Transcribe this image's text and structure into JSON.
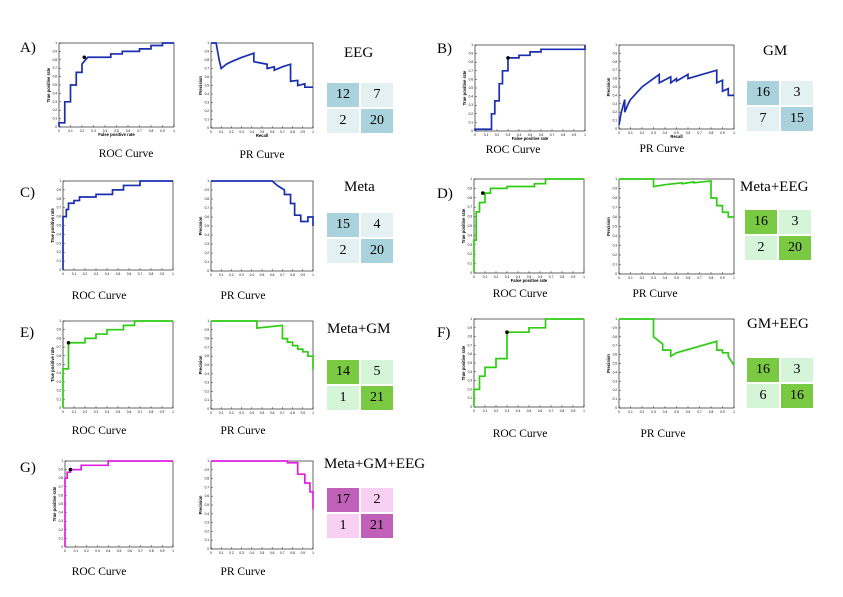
{
  "chart_data": [
    {
      "type": "line",
      "id": "A",
      "panel_label": "A)",
      "title": "EEG",
      "color": "#1a2fb0",
      "roc": {
        "caption": "ROC Curve",
        "xlabel": "False positive rate",
        "ylabel": "True positive rate",
        "x": [
          0,
          0,
          0.05,
          0.05,
          0.1,
          0.1,
          0.15,
          0.15,
          0.2,
          0.2,
          0.25,
          0.45,
          0.45,
          0.55,
          0.55,
          0.7,
          0.7,
          0.8,
          0.8,
          0.9,
          0.9,
          1
        ],
        "y": [
          0,
          0.05,
          0.05,
          0.3,
          0.3,
          0.5,
          0.5,
          0.65,
          0.65,
          0.75,
          0.83,
          0.83,
          0.87,
          0.87,
          0.9,
          0.9,
          0.93,
          0.93,
          0.97,
          0.97,
          1,
          1
        ],
        "marker": [
          0.22,
          0.83
        ]
      },
      "pr": {
        "caption": "PR Curve",
        "xlabel": "Recall",
        "ylabel": "Precision",
        "x": [
          0,
          0.05,
          0.08,
          0.1,
          0.15,
          0.2,
          0.3,
          0.42,
          0.42,
          0.55,
          0.55,
          0.62,
          0.62,
          0.7,
          0.78,
          0.78,
          0.85,
          0.85,
          0.92,
          0.92,
          1
        ],
        "y": [
          1,
          1,
          0.8,
          0.7,
          0.75,
          0.78,
          0.83,
          0.88,
          0.78,
          0.75,
          0.7,
          0.72,
          0.68,
          0.72,
          0.75,
          0.55,
          0.56,
          0.5,
          0.52,
          0.48,
          0.48
        ]
      },
      "matrix": [
        [
          12,
          7
        ],
        [
          2,
          20
        ]
      ],
      "shade": [
        [
          1,
          0
        ],
        [
          0,
          1
        ]
      ],
      "dark": "#a9d2dc",
      "light": "#e4f1f3"
    },
    {
      "type": "line",
      "id": "B",
      "panel_label": "B)",
      "title": "GM",
      "color": "#1a2fb0",
      "roc": {
        "caption": "ROC Curve",
        "xlabel": "False positive rate",
        "ylabel": "True positive rate",
        "x": [
          0,
          0,
          0.05,
          0.1,
          0.15,
          0.15,
          0.18,
          0.18,
          0.22,
          0.22,
          0.25,
          0.25,
          0.3,
          0.3,
          0.4,
          0.4,
          0.5,
          0.5,
          0.6,
          0.6,
          1,
          1
        ],
        "y": [
          0,
          0.02,
          0.02,
          0.02,
          0.02,
          0.2,
          0.2,
          0.35,
          0.35,
          0.55,
          0.55,
          0.7,
          0.7,
          0.85,
          0.85,
          0.88,
          0.88,
          0.92,
          0.92,
          0.95,
          0.95,
          1
        ],
        "marker": [
          0.3,
          0.85
        ]
      },
      "pr": {
        "caption": "PR Curve",
        "xlabel": "Recall",
        "ylabel": "Precision",
        "x": [
          0,
          0.02,
          0.05,
          0.05,
          0.08,
          0.1,
          0.2,
          0.3,
          0.35,
          0.35,
          0.45,
          0.45,
          0.5,
          0.5,
          0.6,
          0.6,
          0.7,
          0.85,
          0.85,
          0.9,
          0.9,
          0.95,
          0.95,
          1
        ],
        "y": [
          0.05,
          0.2,
          0.35,
          0.2,
          0.3,
          0.35,
          0.5,
          0.6,
          0.65,
          0.55,
          0.62,
          0.55,
          0.6,
          0.57,
          0.65,
          0.6,
          0.64,
          0.7,
          0.55,
          0.58,
          0.45,
          0.48,
          0.4,
          0.4
        ]
      },
      "matrix": [
        [
          16,
          3
        ],
        [
          7,
          15
        ]
      ],
      "shade": [
        [
          1,
          0
        ],
        [
          0,
          1
        ]
      ],
      "dark": "#a9d2dc",
      "light": "#e4f1f3"
    },
    {
      "type": "line",
      "id": "C",
      "panel_label": "C)",
      "title": "Meta",
      "color": "#1a2fb0",
      "roc": {
        "caption": "ROC Curve",
        "xlabel": "",
        "ylabel": "True positive rate",
        "x": [
          0,
          0,
          0.03,
          0.03,
          0.05,
          0.05,
          0.1,
          0.1,
          0.15,
          0.15,
          0.3,
          0.3,
          0.45,
          0.45,
          0.55,
          0.55,
          0.7,
          0.7,
          1
        ],
        "y": [
          0,
          0.6,
          0.6,
          0.68,
          0.68,
          0.75,
          0.75,
          0.78,
          0.78,
          0.82,
          0.82,
          0.85,
          0.85,
          0.9,
          0.9,
          0.95,
          0.95,
          1,
          1
        ],
        "marker": null
      },
      "pr": {
        "caption": "PR Curve",
        "xlabel": "",
        "ylabel": "Precision",
        "x": [
          0,
          0.6,
          0.65,
          0.72,
          0.72,
          0.78,
          0.78,
          0.82,
          0.82,
          0.88,
          0.88,
          0.95,
          0.95,
          1,
          1
        ],
        "y": [
          1,
          1,
          0.95,
          0.9,
          0.85,
          0.85,
          0.75,
          0.75,
          0.62,
          0.62,
          0.55,
          0.55,
          0.6,
          0.6,
          0.5
        ]
      },
      "matrix": [
        [
          15,
          4
        ],
        [
          2,
          20
        ]
      ],
      "shade": [
        [
          1,
          0
        ],
        [
          0,
          1
        ]
      ],
      "dark": "#a9d2dc",
      "light": "#e4f1f3"
    },
    {
      "type": "line",
      "id": "D",
      "panel_label": "D)",
      "title": "Meta+EEG",
      "color": "#2ecc12",
      "roc": {
        "caption": "ROC Curve",
        "xlabel": "False positive rate",
        "ylabel": "True positive rate",
        "x": [
          0,
          0,
          0.02,
          0.02,
          0.05,
          0.05,
          0.1,
          0.1,
          0.15,
          0.15,
          0.3,
          0.3,
          0.55,
          0.55,
          0.65,
          0.65,
          1
        ],
        "y": [
          0,
          0.35,
          0.35,
          0.65,
          0.65,
          0.75,
          0.75,
          0.85,
          0.85,
          0.9,
          0.9,
          0.92,
          0.92,
          0.95,
          0.95,
          1,
          1
        ],
        "marker": [
          0.08,
          0.85
        ]
      },
      "pr": {
        "caption": "PR Curve",
        "xlabel": "",
        "ylabel": "Precision",
        "x": [
          0,
          0.3,
          0.3,
          0.4,
          0.55,
          0.55,
          0.65,
          0.65,
          0.8,
          0.8,
          0.85,
          0.85,
          0.9,
          0.9,
          0.95,
          0.95,
          1
        ],
        "y": [
          1,
          1,
          0.92,
          0.94,
          0.96,
          0.95,
          0.97,
          0.96,
          0.98,
          0.8,
          0.8,
          0.72,
          0.72,
          0.65,
          0.65,
          0.6,
          0.6
        ]
      },
      "matrix": [
        [
          16,
          3
        ],
        [
          2,
          20
        ]
      ],
      "shade": [
        [
          1,
          0
        ],
        [
          0,
          1
        ]
      ],
      "dark": "#7ac943",
      "light": "#d5f5d9"
    },
    {
      "type": "line",
      "id": "E",
      "panel_label": "E)",
      "title": "Meta+GM",
      "color": "#2ecc12",
      "roc": {
        "caption": "ROC Curve",
        "xlabel": "",
        "ylabel": "True positive rate",
        "x": [
          0,
          0,
          0.05,
          0.05,
          0.2,
          0.2,
          0.3,
          0.3,
          0.4,
          0.4,
          0.55,
          0.55,
          0.65,
          0.65,
          1
        ],
        "y": [
          0,
          0.45,
          0.45,
          0.75,
          0.75,
          0.8,
          0.8,
          0.85,
          0.85,
          0.9,
          0.9,
          0.95,
          0.95,
          1,
          1
        ],
        "marker": [
          0.05,
          0.75
        ]
      },
      "pr": {
        "caption": "PR Curve",
        "xlabel": "",
        "ylabel": "Precision",
        "x": [
          0,
          0.45,
          0.45,
          0.7,
          0.7,
          0.75,
          0.75,
          0.8,
          0.8,
          0.85,
          0.85,
          0.9,
          0.9,
          0.95,
          0.95,
          1,
          1
        ],
        "y": [
          1,
          1,
          0.92,
          0.95,
          0.8,
          0.8,
          0.76,
          0.76,
          0.72,
          0.72,
          0.68,
          0.68,
          0.65,
          0.65,
          0.6,
          0.6,
          0.45
        ]
      },
      "matrix": [
        [
          14,
          5
        ],
        [
          1,
          21
        ]
      ],
      "shade": [
        [
          1,
          0
        ],
        [
          0,
          1
        ]
      ],
      "dark": "#7ac943",
      "light": "#d5f5d9"
    },
    {
      "type": "line",
      "id": "F",
      "panel_label": "F)",
      "title": "GM+EEG",
      "color": "#2ecc12",
      "roc": {
        "caption": "ROC Curve",
        "xlabel": "",
        "ylabel": "True positive rate",
        "x": [
          0,
          0,
          0.05,
          0.05,
          0.1,
          0.1,
          0.2,
          0.2,
          0.3,
          0.3,
          0.5,
          0.5,
          0.65,
          0.65,
          1
        ],
        "y": [
          0,
          0.2,
          0.2,
          0.35,
          0.35,
          0.45,
          0.45,
          0.55,
          0.55,
          0.85,
          0.85,
          0.9,
          0.9,
          1,
          1
        ],
        "marker": [
          0.3,
          0.85
        ]
      },
      "pr": {
        "caption": "PR Curve",
        "xlabel": "",
        "ylabel": "Precision",
        "x": [
          0,
          0.3,
          0.3,
          0.38,
          0.38,
          0.45,
          0.45,
          0.5,
          0.85,
          0.85,
          0.9,
          0.9,
          0.95,
          0.95,
          1
        ],
        "y": [
          1,
          1,
          0.8,
          0.72,
          0.65,
          0.65,
          0.58,
          0.62,
          0.75,
          0.65,
          0.65,
          0.62,
          0.62,
          0.58,
          0.48
        ]
      },
      "matrix": [
        [
          16,
          3
        ],
        [
          6,
          16
        ]
      ],
      "shade": [
        [
          1,
          0
        ],
        [
          0,
          1
        ]
      ],
      "dark": "#7ac943",
      "light": "#d5f5d9"
    },
    {
      "type": "line",
      "id": "G",
      "panel_label": "G)",
      "title": "Meta+GM+EEG",
      "color": "#e020e0",
      "roc": {
        "caption": "ROC Curve",
        "xlabel": "",
        "ylabel": "True positive rate",
        "x": [
          0,
          0,
          0.02,
          0.02,
          0.05,
          0.05,
          0.15,
          0.15,
          0.4,
          0.4,
          1
        ],
        "y": [
          0,
          0.8,
          0.8,
          0.87,
          0.87,
          0.9,
          0.9,
          0.95,
          0.95,
          1,
          1
        ],
        "marker": [
          0.05,
          0.9
        ]
      },
      "pr": {
        "caption": "PR Curve",
        "xlabel": "",
        "ylabel": "Precision",
        "x": [
          0,
          0.75,
          0.75,
          0.85,
          0.85,
          0.92,
          0.92,
          0.97,
          0.97,
          1,
          1
        ],
        "y": [
          1,
          1,
          0.98,
          0.98,
          0.85,
          0.85,
          0.75,
          0.75,
          0.65,
          0.65,
          0.45
        ]
      },
      "matrix": [
        [
          17,
          2
        ],
        [
          1,
          21
        ]
      ],
      "shade": [
        [
          1,
          0
        ],
        [
          0,
          1
        ]
      ],
      "dark": "#c060b8",
      "light": "#f8d0f4"
    }
  ]
}
